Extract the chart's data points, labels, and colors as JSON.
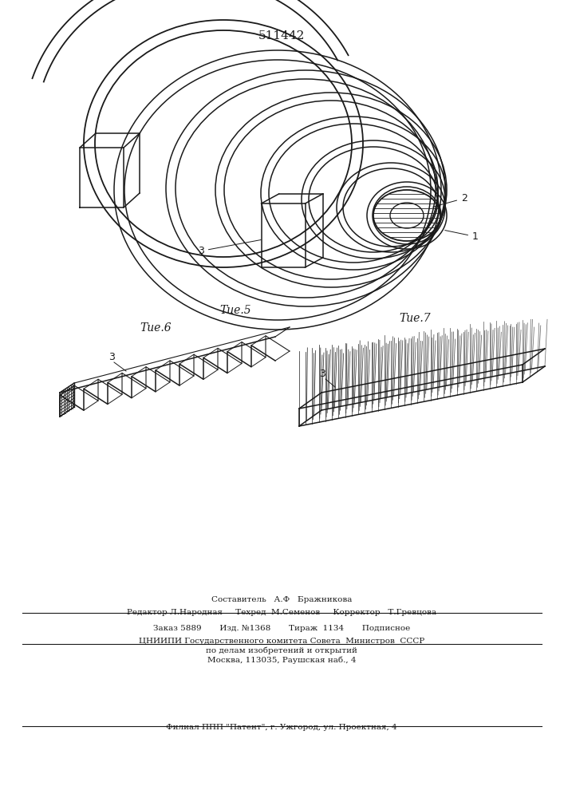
{
  "patent_number": "511442",
  "fig5_label": "Τие.5",
  "fig6_label": "Τие.6",
  "fig7_label": "Τие.7",
  "label1": "1",
  "label2": "2",
  "label3_fig5": "3",
  "label3_fig6": "3",
  "label3_fig7": "3",
  "footer_line1": "Составитель   А.Ф   Бражникова",
  "footer_line2": "Редактор Л.Народная     Техред  М.Семенов     Корректор   Т.Гревцова",
  "footer_line3": "Заказ 5889       Изд. №1368       Тираж  1134       Подписное",
  "footer_line4": "ЦНИИПИ Государственного комитета Совета  Министров  СССР",
  "footer_line5": "по делам изобретений и открытий",
  "footer_line6": "Москва, 113035, Раушская наб., 4",
  "footer_line7": "Филиал ППП \"Патент\", г. Ужгород, ул. Проектная, 4",
  "bg_color": "#ffffff",
  "line_color": "#1a1a1a"
}
